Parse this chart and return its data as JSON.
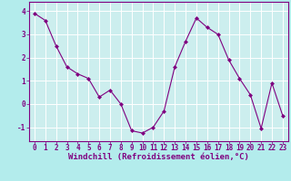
{
  "x": [
    0,
    1,
    2,
    3,
    4,
    5,
    6,
    7,
    8,
    9,
    10,
    11,
    12,
    13,
    14,
    15,
    16,
    17,
    18,
    19,
    20,
    21,
    22,
    23
  ],
  "y": [
    3.9,
    3.6,
    2.5,
    1.6,
    1.3,
    1.1,
    0.3,
    0.6,
    0.0,
    -1.15,
    -1.25,
    -1.0,
    -0.3,
    1.6,
    2.7,
    3.7,
    3.3,
    3.0,
    1.9,
    1.1,
    0.4,
    -1.05,
    0.9,
    -0.5
  ],
  "line_color": "#800080",
  "marker": "D",
  "marker_size": 2.0,
  "bg_color": "#b3ecec",
  "grid_color": "#d0d0d0",
  "plot_bg_color": "#cceeee",
  "xlabel": "Windchill (Refroidissement éolien,°C)",
  "xlabel_color": "#800080",
  "tick_color": "#800080",
  "spine_color": "#800080",
  "xlim": [
    -0.5,
    23.5
  ],
  "ylim": [
    -1.6,
    4.4
  ],
  "yticks": [
    -1,
    0,
    1,
    2,
    3,
    4
  ],
  "xticks": [
    0,
    1,
    2,
    3,
    4,
    5,
    6,
    7,
    8,
    9,
    10,
    11,
    12,
    13,
    14,
    15,
    16,
    17,
    18,
    19,
    20,
    21,
    22,
    23
  ],
  "tick_fontsize": 5.5,
  "xlabel_fontsize": 6.5
}
